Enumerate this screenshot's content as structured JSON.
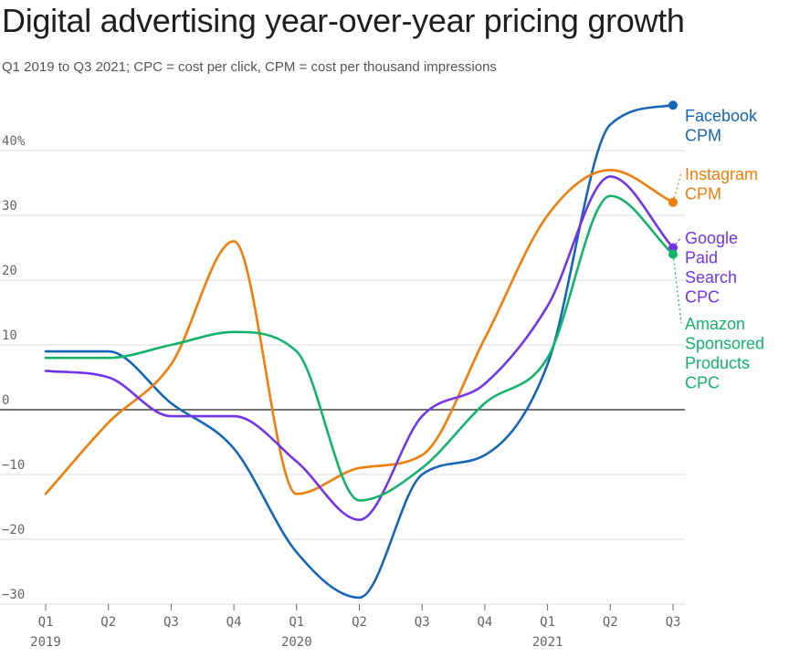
{
  "header": {
    "title": "Digital advertising year-over-year pricing growth",
    "subtitle": "Q1 2019 to Q3 2021; CPC = cost per click, CPM = cost per thousand impressions"
  },
  "chart_data": {
    "type": "line",
    "categories": [
      "Q1",
      "Q2",
      "Q3",
      "Q4",
      "Q1",
      "Q2",
      "Q3",
      "Q4",
      "Q1",
      "Q2",
      "Q3"
    ],
    "year_labels": [
      {
        "index": 0,
        "label": "2019"
      },
      {
        "index": 4,
        "label": "2020"
      },
      {
        "index": 8,
        "label": "2021"
      }
    ],
    "ylim": [
      -30,
      40
    ],
    "yticks": [
      40,
      30,
      20,
      10,
      0,
      -10,
      -20,
      -30
    ],
    "ytick_labels": [
      "40%",
      "30",
      "20",
      "10",
      "0",
      "−10",
      "−20",
      "−30"
    ],
    "zero_line": true,
    "grid": true,
    "series": [
      {
        "name": "Facebook CPM",
        "label_lines": [
          "Facebook",
          "CPM"
        ],
        "color": "#1565b8",
        "values": [
          9,
          9,
          1,
          -6,
          -22,
          -29,
          -10,
          -7,
          7,
          44,
          47
        ]
      },
      {
        "name": "Instagram CPM",
        "label_lines": [
          "Instagram",
          "CPM"
        ],
        "color": "#f07d0a",
        "values": [
          -13,
          -2,
          7,
          26,
          -13,
          -9,
          -7,
          11,
          30,
          37,
          32
        ]
      },
      {
        "name": "Google Paid Search CPC",
        "label_lines": [
          "Google",
          "Paid",
          "Search",
          "CPC"
        ],
        "color": "#7235e8",
        "values": [
          6,
          5,
          -1,
          -1,
          -8,
          -17,
          -1,
          4,
          16,
          36,
          25
        ]
      },
      {
        "name": "Amazon Sponsored Products CPC",
        "label_lines": [
          "Amazon",
          "Sponsored",
          "Products",
          "CPC"
        ],
        "color": "#14b36b",
        "values": [
          8,
          8,
          10,
          12,
          9,
          -14,
          -9,
          1,
          8,
          33,
          24
        ]
      }
    ]
  }
}
